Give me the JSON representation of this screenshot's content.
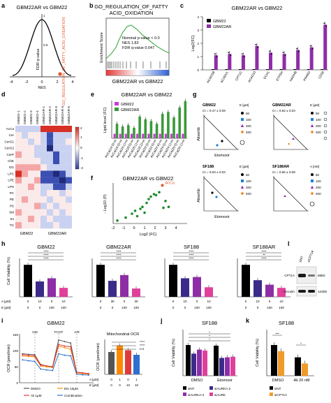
{
  "panels": {
    "a": {
      "letter": "a",
      "title": "GBM22AR vs GBM22",
      "xlabel": "NES",
      "ylabel": "FDR q-value",
      "annotation": "GO_REGULATION_OF_FATTY_ACID_OXIDATION",
      "xticks": [
        "-4",
        "-2",
        "0",
        "2",
        "4"
      ],
      "yticks": [
        "0",
        "0.5",
        "1"
      ],
      "colors": {
        "curve": "#000000",
        "highlight": "#e8562a"
      }
    },
    "b": {
      "letter": "b",
      "title_line1": "GO_REGULATION_OF_FATTY",
      "title_line2": "ACID_OXIDATION",
      "ylabel": "Enrichment Score",
      "stats": [
        "Nominal p-value < 0.0",
        "NES 1.83",
        "FDR q-value 0.047"
      ],
      "xlabel": "GBM22AR vs GBM22",
      "colors": {
        "curve": "#4caf50"
      }
    },
    "c": {
      "letter": "c",
      "title": "GBM22AR vs GBM22",
      "ylabel": "Log2(FC)",
      "legend": [
        "GBM22",
        "GBM22AR"
      ],
      "colors": {
        "ctrl": "#000000",
        "treat": "#8e2ea6"
      }
    },
    "d": {
      "letter": "d",
      "col_labels": [
        "GBM22-1",
        "GBM22-2",
        "GBM22-3",
        "GBM22-4",
        "GBM22AR-1",
        "GBM22AR-2",
        "GBM22AR-3",
        "GBM22AR-4",
        "GBM22AR-5"
      ],
      "row_labels": [
        "AcCa",
        "Cer",
        "CerG1",
        "CerG2",
        "CerP",
        "ChE",
        "DG",
        "LPC",
        "LPE",
        "LPS",
        "PC",
        "PE",
        "PS",
        "SM",
        "So",
        "TG"
      ],
      "scale": [
        "2",
        "1",
        "0",
        "-1",
        "-2"
      ],
      "xlabel_left": "GBM22",
      "xlabel_right": "GBM22AR"
    },
    "e": {
      "letter": "e",
      "title": "GBM22AR vs GBM22",
      "ylabel": "Lipid level (FC)",
      "legend": [
        "GBM22",
        "GBM22AR"
      ],
      "colors": {
        "ctrl": "#c83bd6",
        "treat": "#3a9a3a"
      },
      "categories": [
        "AcCa(14:0)+H",
        "AcCa(16:0)+H",
        "AcCa(16:1)+H",
        "AcCa(18:0)+H",
        "AcCa(18:1)+H",
        "AcCa(18:2)+H",
        "AcCa(20:0)+H",
        "AcCa(22:0)+H",
        "AcCa(22:6)+H",
        "AcCa(24:0)+H",
        "AcCa(24:1)+H",
        "AcCa(26:0)+H",
        "AcCa(26:1)+H"
      ]
    },
    "f": {
      "letter": "f",
      "title": "GBM22AR vs GBM22",
      "xlabel": "Log2 (FC)",
      "ylabel": "- Log10 (P)",
      "annotation": "AcCa",
      "xticks": [
        "-2",
        "-1",
        "0",
        "1",
        "2",
        "3",
        "4"
      ],
      "colors": {
        "points": "#1e8a2e",
        "highlight": "#e8562a"
      }
    },
    "g": {
      "letter": "g",
      "xlabel": "Etomoxir",
      "ylabel": "Alisertib",
      "charts": [
        {
          "name": "GBM22",
          "ci": "CI = 0.47 ± 0.09",
          "legend_head": "E [µM]",
          "legend": [
            "50",
            "100",
            "200",
            "400"
          ]
        },
        {
          "name": "GBM22AR",
          "ci": "CI = 0.82 ± 0.03",
          "legend_head_a": "A [µM]",
          "legend_head_e": "E [µM]",
          "a": [
            "50",
            "100",
            "200",
            "400"
          ]
        },
        {
          "name": "SF188",
          "ci": "CI = 0.63 ± 0.03",
          "legend_head": "E [µM]",
          "legend": [
            "50",
            "100",
            "200",
            "400"
          ]
        },
        {
          "name": "SF188AR",
          "ci": "CI = 0.66 ± 0.08",
          "legend_head_a": "A [nM]",
          "a": [
            "50",
            "100",
            "200",
            "400"
          ]
        }
      ],
      "colors": {
        "c1": "#000000",
        "c2": "#1e7fd6",
        "c3": "#8e2ea6",
        "c4": "#e88a2a"
      }
    },
    "h": {
      "letter": "h",
      "ylabel": "Cell Viability (%)",
      "rowA": "A [µM]",
      "rowE": "E [µM]",
      "rowAn": "A [nM]",
      "groups": [
        {
          "title": "GBM22",
          "a": [
            "0",
            "10",
            "0",
            "10"
          ],
          "e": [
            "0",
            "0",
            "100",
            "100"
          ],
          "sig": [
            "****",
            "****",
            "****"
          ]
        },
        {
          "title": "GBM22AR",
          "a": [
            "0",
            "30",
            "0",
            "30"
          ],
          "e": [
            "0",
            "0",
            "100",
            "100"
          ],
          "sig": [
            "****",
            "****",
            "****"
          ]
        },
        {
          "title": "SF188",
          "a": [
            "0",
            "10",
            "0",
            "10"
          ],
          "e": [
            "0",
            "0",
            "100",
            "100"
          ],
          "sig": [
            "****",
            "****",
            "****"
          ]
        },
        {
          "title": "SF188AR",
          "a": [
            "0",
            "10",
            "0",
            "10"
          ],
          "e": [
            "0",
            "0",
            "100",
            "100"
          ],
          "sig": [
            "****",
            "**",
            "****"
          ]
        }
      ],
      "colors": {
        "c1": "#000000",
        "c2": "#3b2a8a",
        "c3": "#8e2ea6",
        "c4": "#e0409a"
      }
    },
    "l": {
      "letter": "l",
      "lanes": [
        "siNT",
        "siCPT1A"
      ],
      "rows": [
        {
          "label": "CPT1A",
          "kd": "88kD"
        },
        {
          "label": "Vinculin",
          "kd": "124kD"
        }
      ]
    },
    "i": {
      "letter": "i",
      "title": "GBM22",
      "ylabel": "OCR (pmol/min)",
      "phases": [
        "OM",
        "FCCP",
        "A/R"
      ],
      "legend": [
        "DMSO",
        "Eto 10µM",
        "Ali 1µM",
        "Combination"
      ],
      "yticks": [
        "0",
        "50",
        "100",
        "150"
      ],
      "colors": {
        "c1": "#555555",
        "c2": "#ff8a00",
        "c3": "#e03a3a",
        "c4": "#2f6fd0"
      },
      "bar": {
        "title": "Mitochondrial OCR",
        "ylabel": "OCR (pmol/min)",
        "a": [
          "0",
          "1",
          "0",
          "1"
        ],
        "e": [
          "0",
          "0",
          "10",
          "10"
        ],
        "sig": [
          "****",
          "****",
          "n.s"
        ],
        "rowA": "A [µM]",
        "rowE": "E [µM]"
      }
    },
    "j": {
      "letter": "j",
      "title": "SF188",
      "ylabel": "Cell Viability (%)",
      "groups": [
        "DMSO",
        "Etomoxir"
      ],
      "legend": [
        "siNT",
        "siAURKA-2",
        "siAURKA-4",
        "siAURK"
      ],
      "sig": [
        "*",
        "*",
        "*"
      ],
      "colors": {
        "c1": "#000000",
        "c2": "#3b2a8a",
        "c3": "#8e2ea6",
        "c4": "#e0409a"
      }
    },
    "k": {
      "letter": "k",
      "title": "SF188",
      "ylabel": "Cell Viability (%)",
      "groups": [
        "DMSO",
        "Ali 20 nM"
      ],
      "legend": [
        "siNT",
        "siCPT1A"
      ],
      "sig": [
        "***",
        "*"
      ],
      "colors": {
        "c1": "#000000",
        "c2": "#f09a2a"
      }
    }
  },
  "chart_data": [
    {
      "panel": "c",
      "type": "bar",
      "categories": [
        "ACADSB",
        "ACADVL",
        "CPT1C",
        "ACAD10",
        "ECH1",
        "ETFDH",
        "HADHB",
        "PPARD",
        "CD36"
      ],
      "series": [
        {
          "name": "GBM22",
          "values": [
            0,
            0,
            0,
            0,
            0,
            0,
            0,
            0,
            0
          ]
        },
        {
          "name": "GBM22AR",
          "values": [
            1.1,
            1.2,
            1.1,
            1.8,
            1.3,
            1.2,
            1.5,
            1.7,
            3.4
          ]
        }
      ],
      "ylim": [
        0,
        4
      ],
      "ylabel": "Log2(FC)"
    },
    {
      "panel": "e",
      "type": "bar",
      "categories": [
        "AcCa(14:0)+H",
        "AcCa(16:0)+H",
        "AcCa(16:1)+H",
        "AcCa(18:0)+H",
        "AcCa(18:1)+H",
        "AcCa(18:2)+H",
        "AcCa(20:0)+H",
        "AcCa(22:0)+H",
        "AcCa(22:6)+H",
        "AcCa(24:0)+H",
        "AcCa(24:1)+H",
        "AcCa(26:0)+H",
        "AcCa(26:1)+H"
      ],
      "series": [
        {
          "name": "GBM22",
          "values": [
            1,
            1,
            1,
            1,
            1,
            1,
            1,
            1,
            1,
            1,
            1,
            1,
            1
          ]
        },
        {
          "name": "GBM22AR",
          "values": [
            3.2,
            2.6,
            2.9,
            2.3,
            4.8,
            4.2,
            3.8,
            3.2,
            5.4,
            5.8,
            4.6,
            6.8,
            8.2
          ]
        }
      ],
      "ylim": [
        0,
        8
      ],
      "ylabel": "Lipid level (FC)"
    },
    {
      "panel": "f",
      "type": "scatter",
      "x": [
        -1.6,
        -0.8,
        -0.2,
        0.1,
        0.3,
        0.6,
        0.8,
        1.0,
        1.2,
        1.4,
        1.6,
        1.9,
        2.1,
        2.4,
        2.8,
        3.0,
        3.3
      ],
      "y": [
        0.6,
        1.2,
        2.0,
        2.6,
        1.5,
        3.0,
        3.4,
        2.2,
        4.2,
        5.0,
        5.5,
        6.0,
        5.8,
        6.4,
        3.2,
        4.6,
        3.4
      ],
      "highlight": {
        "x": 2.7,
        "y": 7.8,
        "label": "AcCa"
      },
      "xlabel": "Log2 (FC)",
      "ylabel": "- Log10 (P)"
    },
    {
      "panel": "h",
      "type": "bar",
      "groups": [
        "GBM22",
        "GBM22AR",
        "SF188",
        "SF188AR"
      ],
      "values": [
        [
          100,
          48,
          58,
          28
        ],
        [
          100,
          50,
          68,
          26
        ],
        [
          100,
          58,
          62,
          30
        ],
        [
          100,
          52,
          38,
          28
        ]
      ],
      "ylim": [
        0,
        120
      ],
      "ylabel": "Cell Viability (%)"
    },
    {
      "panel": "i-line",
      "type": "line",
      "x": [
        1,
        2,
        3,
        4,
        5,
        6,
        7,
        8,
        9,
        10,
        11,
        12
      ],
      "series": [
        {
          "name": "DMSO",
          "values": [
            95,
            93,
            92,
            60,
            55,
            53,
            140,
            135,
            130,
            35,
            32,
            30
          ]
        },
        {
          "name": "Eto 10µM",
          "values": [
            88,
            86,
            85,
            55,
            52,
            50,
            120,
            115,
            110,
            32,
            30,
            28
          ]
        },
        {
          "name": "Ali 1µM",
          "values": [
            92,
            90,
            88,
            58,
            55,
            52,
            125,
            120,
            118,
            35,
            32,
            30
          ]
        },
        {
          "name": "Combination",
          "values": [
            75,
            72,
            70,
            45,
            42,
            40,
            95,
            90,
            88,
            28,
            26,
            25
          ]
        }
      ],
      "ylim": [
        0,
        160
      ],
      "ylabel": "OCR (pmol/min)"
    },
    {
      "panel": "i-bar",
      "type": "bar",
      "categories": [
        "1",
        "2",
        "3",
        "4"
      ],
      "values": [
        128,
        165,
        138,
        112
      ],
      "ylim": [
        0,
        200
      ]
    },
    {
      "panel": "j",
      "type": "bar",
      "groups": [
        "DMSO",
        "Etomoxir"
      ],
      "series": [
        {
          "name": "siNT",
          "values": [
            100,
            98
          ]
        },
        {
          "name": "siAURKA-2",
          "values": [
            72,
            58
          ]
        },
        {
          "name": "siAURKA-4",
          "values": [
            85,
            60
          ]
        },
        {
          "name": "siAURK",
          "values": [
            82,
            62
          ]
        }
      ],
      "ylim": [
        0,
        150
      ]
    },
    {
      "panel": "k",
      "type": "bar",
      "groups": [
        "DMSO",
        "Ali 20 nM"
      ],
      "series": [
        {
          "name": "siNT",
          "values": [
            100,
            60
          ]
        },
        {
          "name": "siCPT1A",
          "values": [
            80,
            40
          ]
        }
      ],
      "ylim": [
        0,
        150
      ]
    }
  ]
}
